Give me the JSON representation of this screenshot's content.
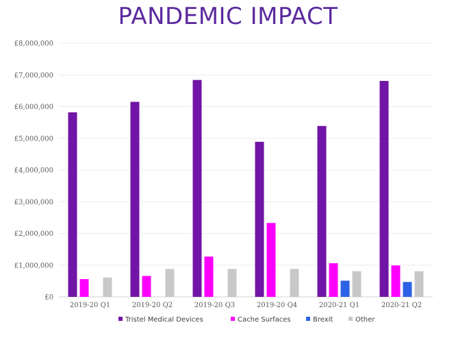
{
  "page_title": "PANDEMIC IMPACT",
  "chart_data": {
    "type": "bar",
    "title": "PANDEMIC IMPACT",
    "xlabel": "",
    "ylabel": "",
    "categories": [
      "2019-20 Q1",
      "2019-20 Q2",
      "2019-20 Q3",
      "2019-20 Q4",
      "2020-21 Q1",
      "2020-21 Q2"
    ],
    "ylim": [
      0,
      8000000
    ],
    "yticks": [
      {
        "value": 0,
        "label": "£0"
      },
      {
        "value": 1000000,
        "label": "£1,000,000"
      },
      {
        "value": 2000000,
        "label": "£2,000,000"
      },
      {
        "value": 3000000,
        "label": "£3,000,000"
      },
      {
        "value": 4000000,
        "label": "£4,000,000"
      },
      {
        "value": 5000000,
        "label": "£5,000,000"
      },
      {
        "value": 6000000,
        "label": "£6,000,000"
      },
      {
        "value": 7000000,
        "label": "£7,000,000"
      },
      {
        "value": 8000000,
        "label": "£8,000,000"
      }
    ],
    "grid": true,
    "legend_position": "bottom",
    "series": [
      {
        "name": "Tristel Medical Devices",
        "color": "#7015a5",
        "values": [
          5820000,
          6150000,
          6840000,
          4890000,
          5390000,
          6810000
        ]
      },
      {
        "name": "Cache Surfaces",
        "color": "#ff00ff",
        "values": [
          560000,
          660000,
          1270000,
          2330000,
          1060000,
          990000
        ]
      },
      {
        "name": "Brexit",
        "color": "#2d62e6",
        "values": [
          0,
          0,
          0,
          0,
          510000,
          470000
        ]
      },
      {
        "name": "Other",
        "color": "#c8c8c8",
        "values": [
          610000,
          880000,
          880000,
          880000,
          810000,
          810000
        ]
      }
    ]
  }
}
